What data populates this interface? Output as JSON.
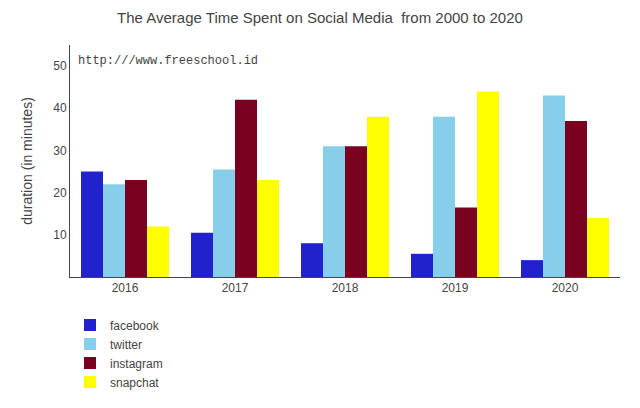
{
  "chart_data": {
    "type": "bar",
    "title": "The Average Time Spent on Social Media  from 2000 to 2020",
    "ylabel": "duration (in minutes)",
    "annotations": [
      "http:///www.freeschool.id"
    ],
    "categories": [
      "2016",
      "2017",
      "2018",
      "2019",
      "2020"
    ],
    "series": [
      {
        "name": "facebook",
        "color": "#2222cc",
        "values": [
          25,
          10.5,
          8,
          5.5,
          4
        ]
      },
      {
        "name": "twitter",
        "color": "#87ceeb",
        "values": [
          22,
          25.5,
          31,
          38,
          43
        ]
      },
      {
        "name": "instagram",
        "color": "#7a0020",
        "values": [
          23,
          42,
          31,
          16.5,
          37
        ]
      },
      {
        "name": "snapchat",
        "color": "#ffff00",
        "values": [
          12,
          23,
          38,
          44,
          14
        ]
      }
    ],
    "ylim": [
      0,
      55
    ],
    "yticks": [
      10,
      20,
      30,
      40,
      50
    ],
    "grid": false,
    "legend": "bottom left"
  }
}
